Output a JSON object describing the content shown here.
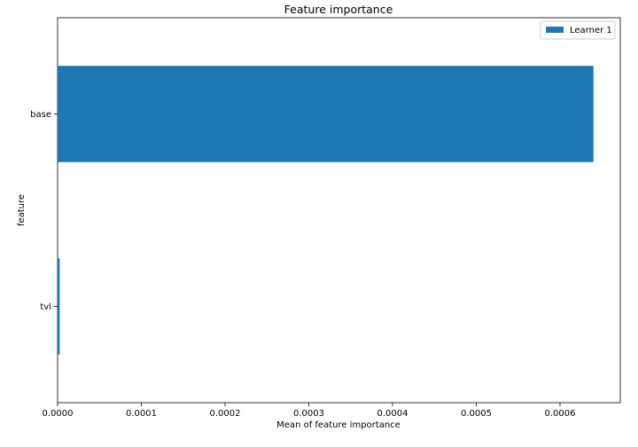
{
  "chart_data": {
    "type": "bar",
    "orientation": "horizontal",
    "title": "Feature importance",
    "xlabel": "Mean of feature importance",
    "ylabel": "feature",
    "categories": [
      "base",
      "tvl"
    ],
    "series": [
      {
        "name": "Learner 1",
        "values": [
          0.00064,
          2.5e-06
        ],
        "color": "#1f77b4"
      }
    ],
    "xlim": [
      0,
      0.000672
    ],
    "xticks": [
      "0.0000",
      "0.0001",
      "0.0002",
      "0.0003",
      "0.0004",
      "0.0005",
      "0.0006"
    ],
    "grid": false,
    "legend_position": "top-right"
  }
}
